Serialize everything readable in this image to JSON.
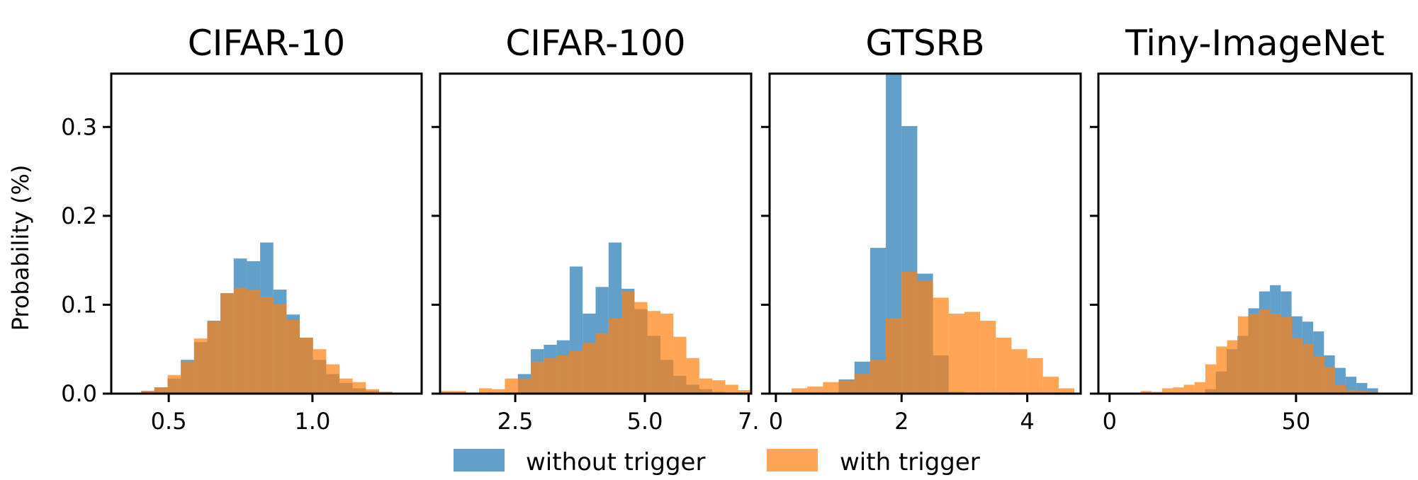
{
  "colors": {
    "without": "#1f77b4",
    "with": "#ff7f0e"
  },
  "ylabel": "Probability (%)",
  "legend": [
    {
      "key": "without",
      "label": "without trigger"
    },
    {
      "key": "with",
      "label": "with trigger"
    }
  ],
  "chart_data": [
    {
      "type": "histogram",
      "title": "CIFAR-10",
      "xlim": [
        0.3,
        1.38
      ],
      "ylim": [
        0,
        0.36
      ],
      "xticks": [
        0.5,
        1.0
      ],
      "xtick_labels": [
        "0.5",
        "1.0"
      ],
      "yticks": [
        0.0,
        0.1,
        0.2,
        0.3
      ],
      "ytick_labels": [
        "0.0",
        "0.1",
        "0.2",
        "0.3"
      ],
      "bin_width": 0.046,
      "series": [
        {
          "name": "without trigger",
          "key": "without",
          "bins_start": [
            0.404,
            0.45,
            0.496,
            0.542,
            0.588,
            0.634,
            0.68,
            0.726,
            0.772,
            0.818,
            0.864,
            0.91,
            0.956,
            1.002,
            1.048,
            1.094,
            1.14,
            1.186,
            1.232,
            1.278
          ],
          "values": [
            0.003,
            0.007,
            0.017,
            0.038,
            0.058,
            0.082,
            0.113,
            0.152,
            0.149,
            0.17,
            0.117,
            0.089,
            0.063,
            0.038,
            0.022,
            0.012,
            0.006,
            0.003,
            0.002,
            0.001
          ]
        },
        {
          "name": "with trigger",
          "key": "with",
          "bins_start": [
            0.404,
            0.45,
            0.496,
            0.542,
            0.588,
            0.634,
            0.68,
            0.726,
            0.772,
            0.818,
            0.864,
            0.91,
            0.956,
            1.002,
            1.048,
            1.094,
            1.14,
            1.186,
            1.232,
            1.278
          ],
          "values": [
            0.003,
            0.007,
            0.021,
            0.036,
            0.062,
            0.081,
            0.113,
            0.119,
            0.117,
            0.109,
            0.101,
            0.083,
            0.063,
            0.05,
            0.033,
            0.017,
            0.013,
            0.005,
            0.002,
            0.001
          ]
        }
      ]
    },
    {
      "type": "histogram",
      "title": "CIFAR-100",
      "xlim": [
        1.05,
        7.05
      ],
      "ylim": [
        0,
        0.36
      ],
      "xticks": [
        2.5,
        5.0,
        7.0
      ],
      "xtick_labels": [
        "2.5",
        "5.0",
        "7."
      ],
      "yticks": [
        0.0,
        0.1,
        0.2,
        0.3
      ],
      "ytick_labels": [
        "",
        "",
        "",
        ""
      ],
      "bin_width": 0.25,
      "series": [
        {
          "name": "without trigger",
          "key": "without",
          "bins_start": [
            1.05,
            1.3,
            1.55,
            1.8,
            2.05,
            2.3,
            2.55,
            2.8,
            3.05,
            3.3,
            3.55,
            3.8,
            4.05,
            4.3,
            4.55,
            4.8,
            5.05,
            5.3,
            5.55,
            5.8,
            6.05,
            6.3,
            6.55,
            6.8
          ],
          "values": [
            0.0,
            0.0,
            0.0,
            0.0,
            0.0,
            0.0,
            0.022,
            0.05,
            0.055,
            0.06,
            0.143,
            0.09,
            0.12,
            0.17,
            0.118,
            0.095,
            0.065,
            0.038,
            0.02,
            0.01,
            0.005,
            0.002,
            0.0,
            0.0
          ]
        },
        {
          "name": "with trigger",
          "key": "with",
          "bins_start": [
            1.05,
            1.3,
            1.55,
            1.8,
            2.05,
            2.3,
            2.55,
            2.8,
            3.05,
            3.3,
            3.55,
            3.8,
            4.05,
            4.3,
            4.55,
            4.8,
            5.05,
            5.3,
            5.55,
            5.8,
            6.05,
            6.3,
            6.55,
            6.8
          ],
          "values": [
            0.003,
            0.003,
            0.001,
            0.006,
            0.005,
            0.017,
            0.017,
            0.036,
            0.04,
            0.043,
            0.048,
            0.057,
            0.068,
            0.085,
            0.115,
            0.103,
            0.093,
            0.09,
            0.064,
            0.04,
            0.017,
            0.015,
            0.01,
            0.004
          ]
        }
      ]
    },
    {
      "type": "histogram",
      "title": "GTSRB",
      "xlim": [
        -0.1,
        4.85
      ],
      "ylim": [
        0,
        0.36
      ],
      "xticks": [
        0,
        2,
        4
      ],
      "xtick_labels": [
        "0",
        "2",
        "4"
      ],
      "yticks": [
        0.0,
        0.1,
        0.2,
        0.3
      ],
      "ytick_labels": [
        "",
        "",
        "",
        ""
      ],
      "bin_width": 0.25,
      "series": [
        {
          "name": "without trigger",
          "key": "without",
          "bins_start": [
            0.25,
            0.5,
            0.75,
            1.0,
            1.25,
            1.5,
            1.75,
            2.0,
            2.25,
            2.5,
            2.75
          ],
          "values": [
            0.0,
            0.0,
            0.0,
            0.016,
            0.036,
            0.164,
            0.36,
            0.301,
            0.135,
            0.043,
            0.002
          ]
        },
        {
          "name": "with trigger",
          "key": "with",
          "bins_start": [
            0.25,
            0.5,
            0.75,
            1.0,
            1.25,
            1.5,
            1.75,
            2.0,
            2.25,
            2.5,
            2.75,
            3.0,
            3.25,
            3.5,
            3.75,
            4.0,
            4.25,
            4.5
          ],
          "values": [
            0.006,
            0.008,
            0.013,
            0.015,
            0.022,
            0.038,
            0.085,
            0.137,
            0.127,
            0.108,
            0.09,
            0.092,
            0.082,
            0.063,
            0.05,
            0.04,
            0.019,
            0.006
          ]
        }
      ]
    },
    {
      "type": "histogram",
      "title": "Tiny-ImageNet",
      "xlim": [
        -3,
        81
      ],
      "ylim": [
        0,
        0.36
      ],
      "xticks": [
        0,
        50
      ],
      "xtick_labels": [
        "0",
        "50"
      ],
      "yticks": [
        0.0,
        0.1,
        0.2,
        0.3
      ],
      "ytick_labels": [
        "",
        "",
        "",
        ""
      ],
      "bin_width": 2.9,
      "series": [
        {
          "name": "without trigger",
          "key": "without",
          "bins_start": [
            14.0,
            16.9,
            19.8,
            22.7,
            25.6,
            28.5,
            31.4,
            34.3,
            37.2,
            40.1,
            43.0,
            45.9,
            48.8,
            51.7,
            54.6,
            57.5,
            60.4,
            63.3,
            66.2,
            69.1
          ],
          "values": [
            0.0,
            0.0,
            0.0,
            0.0,
            0.005,
            0.025,
            0.05,
            0.065,
            0.096,
            0.115,
            0.122,
            0.115,
            0.087,
            0.081,
            0.07,
            0.043,
            0.029,
            0.019,
            0.012,
            0.006
          ]
        },
        {
          "name": "with trigger",
          "key": "with",
          "bins_start": [
            2.5,
            5.4,
            8.3,
            11.2,
            14.1,
            17.0,
            19.9,
            22.8,
            25.7,
            28.6,
            31.5,
            34.4,
            37.3,
            40.2,
            43.1,
            46.0,
            48.9,
            51.8,
            54.7,
            57.6,
            60.5,
            63.4,
            66.3,
            69.2
          ],
          "values": [
            0.001,
            0.001,
            0.003,
            0.002,
            0.006,
            0.007,
            0.01,
            0.013,
            0.033,
            0.053,
            0.06,
            0.087,
            0.09,
            0.095,
            0.09,
            0.086,
            0.063,
            0.056,
            0.042,
            0.03,
            0.01,
            0.004,
            0.003,
            0.002
          ]
        }
      ]
    }
  ]
}
